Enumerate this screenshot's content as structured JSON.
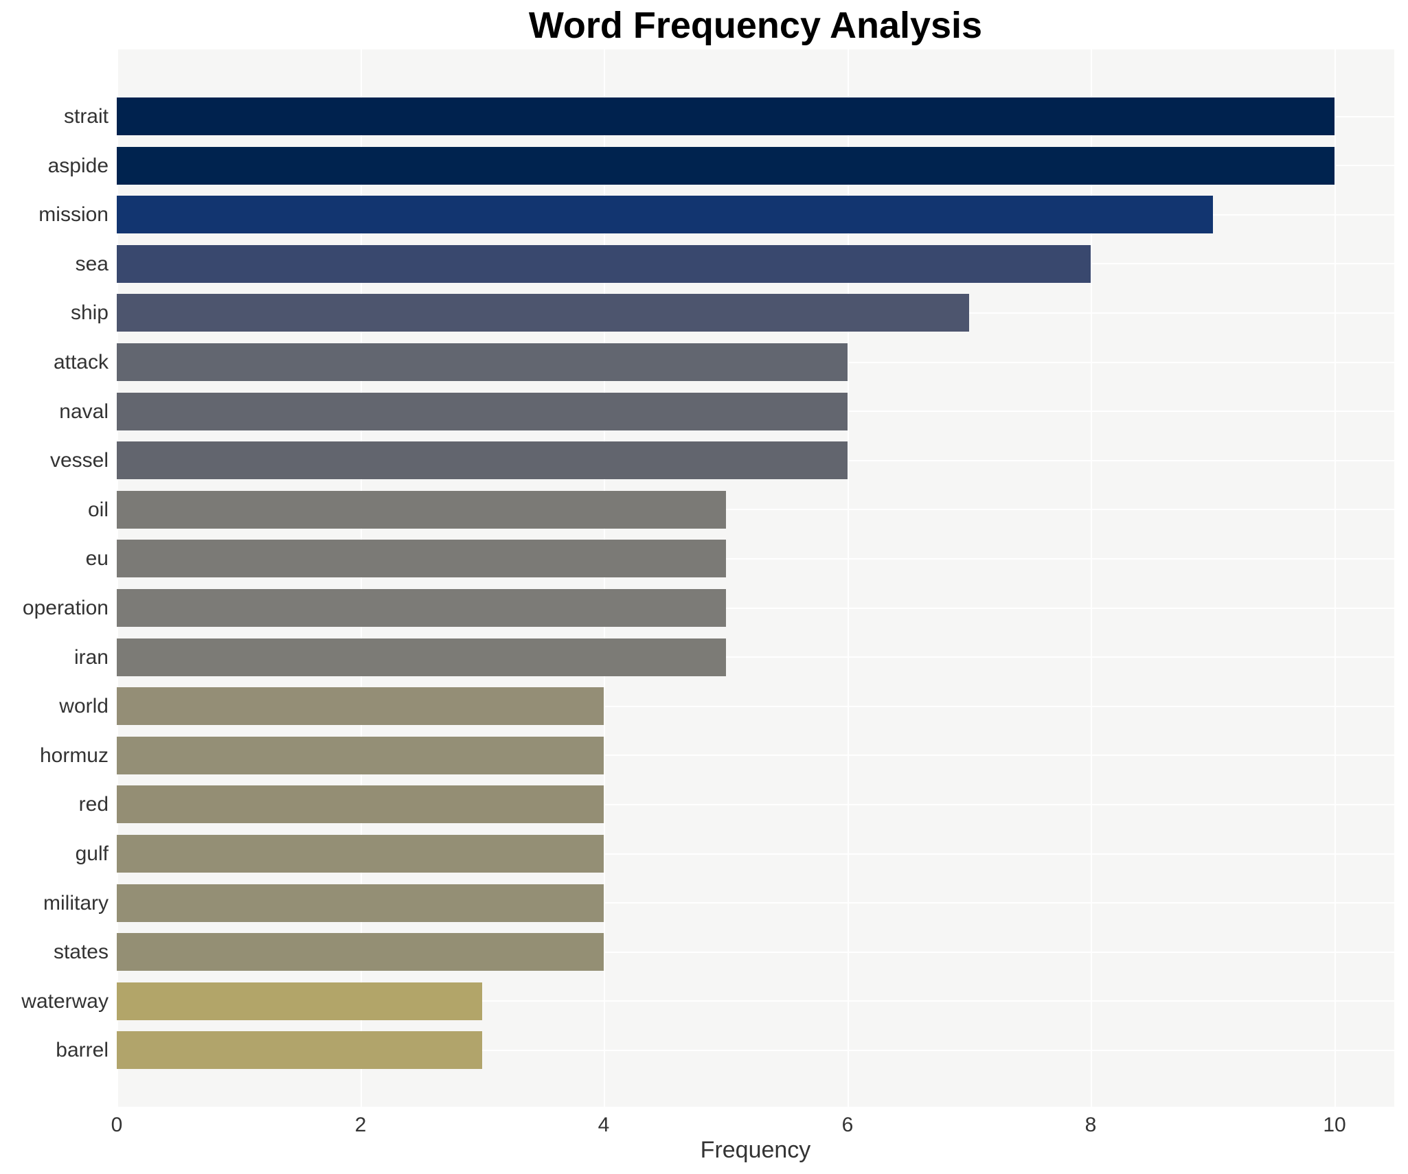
{
  "title": "Word Frequency Analysis",
  "chart_data": {
    "type": "bar",
    "orientation": "horizontal",
    "title": "Word Frequency Analysis",
    "xlabel": "Frequency",
    "ylabel": "",
    "xlim": [
      0,
      10.5
    ],
    "xticks": [
      0,
      2,
      4,
      6,
      8,
      10
    ],
    "grid": true,
    "legend": false,
    "categories": [
      "strait",
      "aspide",
      "mission",
      "sea",
      "ship",
      "attack",
      "naval",
      "vessel",
      "oil",
      "eu",
      "operation",
      "iran",
      "world",
      "hormuz",
      "red",
      "gulf",
      "military",
      "states",
      "waterway",
      "barrel"
    ],
    "values": [
      10,
      10,
      9,
      8,
      7,
      6,
      6,
      6,
      5,
      5,
      5,
      5,
      4,
      4,
      4,
      4,
      4,
      4,
      3,
      3
    ],
    "bar_colors": [
      "#00224e",
      "#00234f",
      "#123570",
      "#39486e",
      "#4d556e",
      "#626670",
      "#63666f",
      "#62656e",
      "#7b7a76",
      "#7b7a76",
      "#7c7b77",
      "#7c7b76",
      "#948e76",
      "#948f76",
      "#948e74",
      "#948f75",
      "#948f75",
      "#948f74",
      "#b2a569",
      "#b1a46b"
    ],
    "colors": {
      "plot_background": "#f6f6f5",
      "gridline": "#ffffff",
      "title_text": "#000000",
      "tick_text": "#333333"
    }
  }
}
